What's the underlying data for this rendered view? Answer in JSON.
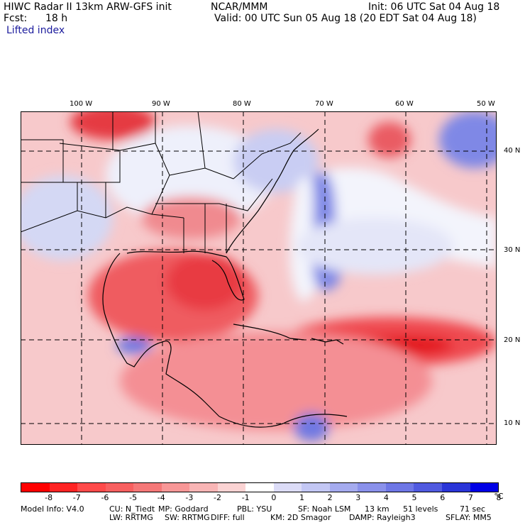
{
  "header": {
    "model_title": "HIWC Radar II 13km ARW-GFS init",
    "org": "NCAR/MMM",
    "init_text": "Init: 06 UTC Sat 04 Aug 18",
    "fcst_label": "Fcst:",
    "fcst_value": "18 h",
    "valid_text": "Valid: 00 UTC Sun 05 Aug 18 (20 EDT Sat 04 Aug 18)",
    "field_name": "Lifted index"
  },
  "map": {
    "lon_labels": [
      "100 W",
      "90 W",
      "80 W",
      "70 W",
      "60 W",
      "50 W"
    ],
    "lat_labels": [
      "40 N",
      "30 N",
      "20 N",
      "10 N"
    ],
    "colors": {
      "strong_red": "#ff1a1a",
      "red": "#f0666a",
      "light_red": "#f7a8aa",
      "pale": "#fde6e6",
      "pale_blue": "#d9dcf5",
      "blue": "#8f98ea",
      "deep_blue": "#3a45d8"
    }
  },
  "colorbar": {
    "colors": [
      "#ff0000",
      "#ff2323",
      "#ff4a4a",
      "#f86060",
      "#f57878",
      "#f89797",
      "#f9b5b5",
      "#fbd3d3",
      "#ffffff",
      "#dcdcf7",
      "#c3c7f4",
      "#a5abef",
      "#8a91eb",
      "#6e77e6",
      "#505ae0",
      "#2a35d8",
      "#0000e6"
    ],
    "labels": [
      "-8",
      "-7",
      "-6",
      "-5",
      "-4",
      "-3",
      "-2",
      "-1",
      "0",
      "1",
      "2",
      "3",
      "4",
      "5",
      "6",
      "7",
      "8"
    ],
    "unit": "°C"
  },
  "footer": {
    "line1": [
      "Model Info: V4.0",
      "CU: N_Tiedt",
      "MP: Goddard",
      "PBL: YSU",
      "SF: Noah LSM",
      "13 km",
      "51 levels",
      "71 sec"
    ],
    "line2": [
      "LW: RRTMG",
      "SW: RRTMG",
      "DIFF: full",
      "KM: 2D Smagor",
      "DAMP: Rayleigh3",
      "SFLAY: MM5"
    ]
  }
}
